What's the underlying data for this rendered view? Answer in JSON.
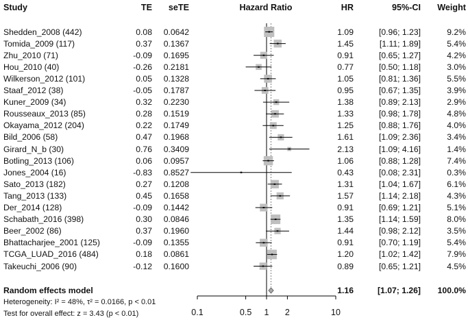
{
  "chart_data": {
    "type": "forest",
    "headers": {
      "study": "Study",
      "te": "TE",
      "sete": "seTE",
      "plot": "Hazard Ratio",
      "hr": "HR",
      "ci": "95%-CI",
      "weight": "Weight"
    },
    "studies": [
      {
        "name": "Shedden_2008 (442)",
        "te": "0.08",
        "sete": "0.0642",
        "hr": 1.09,
        "lower": 0.96,
        "upper": 1.23,
        "hr_text": "1.09",
        "ci_text": "[0.96; 1.23]",
        "weight_text": "9.2%",
        "weight": 9.2
      },
      {
        "name": "Tomida_2009 (117)",
        "te": "0.37",
        "sete": "0.1367",
        "hr": 1.45,
        "lower": 1.11,
        "upper": 1.89,
        "hr_text": "1.45",
        "ci_text": "[1.11; 1.89]",
        "weight_text": "5.4%",
        "weight": 5.4
      },
      {
        "name": "Zhu_2010 (71)",
        "te": "-0.09",
        "sete": "0.1695",
        "hr": 0.91,
        "lower": 0.65,
        "upper": 1.27,
        "hr_text": "0.91",
        "ci_text": "[0.65; 1.27]",
        "weight_text": "4.2%",
        "weight": 4.2
      },
      {
        "name": "Hou_2010 (40)",
        "te": "-0.26",
        "sete": "0.2181",
        "hr": 0.77,
        "lower": 0.5,
        "upper": 1.18,
        "hr_text": "0.77",
        "ci_text": "[0.50; 1.18]",
        "weight_text": "3.0%",
        "weight": 3.0
      },
      {
        "name": "Wilkerson_2012 (101)",
        "te": "0.05",
        "sete": "0.1328",
        "hr": 1.05,
        "lower": 0.81,
        "upper": 1.36,
        "hr_text": "1.05",
        "ci_text": "[0.81; 1.36]",
        "weight_text": "5.5%",
        "weight": 5.5
      },
      {
        "name": "Staaf_2012 (38)",
        "te": "-0.05",
        "sete": "0.1787",
        "hr": 0.95,
        "lower": 0.67,
        "upper": 1.35,
        "hr_text": "0.95",
        "ci_text": "[0.67; 1.35]",
        "weight_text": "3.9%",
        "weight": 3.9
      },
      {
        "name": "Kuner_2009 (34)",
        "te": "0.32",
        "sete": "0.2230",
        "hr": 1.38,
        "lower": 0.89,
        "upper": 2.13,
        "hr_text": "1.38",
        "ci_text": "[0.89; 2.13]",
        "weight_text": "2.9%",
        "weight": 2.9
      },
      {
        "name": "Rousseaux_2013 (85)",
        "te": "0.28",
        "sete": "0.1519",
        "hr": 1.33,
        "lower": 0.98,
        "upper": 1.78,
        "hr_text": "1.33",
        "ci_text": "[0.98; 1.78]",
        "weight_text": "4.8%",
        "weight": 4.8
      },
      {
        "name": "Okayama_2012 (204)",
        "te": "0.22",
        "sete": "0.1749",
        "hr": 1.25,
        "lower": 0.88,
        "upper": 1.76,
        "hr_text": "1.25",
        "ci_text": "[0.88; 1.76]",
        "weight_text": "4.0%",
        "weight": 4.0
      },
      {
        "name": "Bild_2006 (58)",
        "te": "0.47",
        "sete": "0.1968",
        "hr": 1.61,
        "lower": 1.09,
        "upper": 2.36,
        "hr_text": "1.61",
        "ci_text": "[1.09; 2.36]",
        "weight_text": "3.4%",
        "weight": 3.4
      },
      {
        "name": "Girard_N_b (30)",
        "te": "0.76",
        "sete": "0.3409",
        "hr": 2.13,
        "lower": 1.09,
        "upper": 4.16,
        "hr_text": "2.13",
        "ci_text": "[1.09; 4.16]",
        "weight_text": "1.4%",
        "weight": 1.4
      },
      {
        "name": "Botling_2013 (106)",
        "te": "0.06",
        "sete": "0.0957",
        "hr": 1.06,
        "lower": 0.88,
        "upper": 1.28,
        "hr_text": "1.06",
        "ci_text": "[0.88; 1.28]",
        "weight_text": "7.4%",
        "weight": 7.4
      },
      {
        "name": "Jones_2004 (16)",
        "te": "-0.83",
        "sete": "0.8527",
        "hr": 0.43,
        "lower": 0.08,
        "upper": 2.31,
        "hr_text": "0.43",
        "ci_text": "[0.08; 2.31]",
        "weight_text": "0.3%",
        "weight": 0.3
      },
      {
        "name": "Sato_2013 (182)",
        "te": "0.27",
        "sete": "0.1208",
        "hr": 1.31,
        "lower": 1.04,
        "upper": 1.67,
        "hr_text": "1.31",
        "ci_text": "[1.04; 1.67]",
        "weight_text": "6.1%",
        "weight": 6.1
      },
      {
        "name": "Tang_2013 (133)",
        "te": "0.45",
        "sete": "0.1658",
        "hr": 1.57,
        "lower": 1.14,
        "upper": 2.18,
        "hr_text": "1.57",
        "ci_text": "[1.14; 2.18]",
        "weight_text": "4.3%",
        "weight": 4.3
      },
      {
        "name": "Der_2014 (128)",
        "te": "-0.09",
        "sete": "0.1442",
        "hr": 0.91,
        "lower": 0.69,
        "upper": 1.21,
        "hr_text": "0.91",
        "ci_text": "[0.69; 1.21]",
        "weight_text": "5.1%",
        "weight": 5.1
      },
      {
        "name": "Schabath_2016 (398)",
        "te": "0.30",
        "sete": "0.0846",
        "hr": 1.35,
        "lower": 1.14,
        "upper": 1.59,
        "hr_text": "1.35",
        "ci_text": "[1.14; 1.59]",
        "weight_text": "8.0%",
        "weight": 8.0
      },
      {
        "name": "Beer_2002 (86)",
        "te": "0.37",
        "sete": "0.1960",
        "hr": 1.44,
        "lower": 0.98,
        "upper": 2.12,
        "hr_text": "1.44",
        "ci_text": "[0.98; 2.12]",
        "weight_text": "3.5%",
        "weight": 3.5
      },
      {
        "name": "Bhattacharjee_2001 (125)",
        "te": "-0.09",
        "sete": "0.1355",
        "hr": 0.91,
        "lower": 0.7,
        "upper": 1.19,
        "hr_text": "0.91",
        "ci_text": "[0.70; 1.19]",
        "weight_text": "5.4%",
        "weight": 5.4
      },
      {
        "name": "TCGA_LUAD_2016 (484)",
        "te": "0.18",
        "sete": "0.0861",
        "hr": 1.2,
        "lower": 1.02,
        "upper": 1.42,
        "hr_text": "1.20",
        "ci_text": "[1.02; 1.42]",
        "weight_text": "7.9%",
        "weight": 7.9
      },
      {
        "name": "Takeuchi_2006 (90)",
        "te": "-0.12",
        "sete": "0.1600",
        "hr": 0.89,
        "lower": 0.65,
        "upper": 1.21,
        "hr_text": "0.89",
        "ci_text": "[0.65; 1.21]",
        "weight_text": "4.5%",
        "weight": 4.5
      }
    ],
    "summary": {
      "label": "Random effects model",
      "hr": 1.16,
      "lower": 1.07,
      "upper": 1.26,
      "hr_text": "1.16",
      "ci_text": "[1.07; 1.26]",
      "weight_text": "100.0%"
    },
    "heterogeneity_text": "Heterogeneity: I² = 48%, τ² = 0.0166, p < 0.01",
    "overall_test_text": "Test for overall effect: z = 3.43 (p < 0.01)",
    "x_scale": "log",
    "x_ticks": [
      0.1,
      0.5,
      1,
      2,
      10
    ],
    "x_tick_labels": [
      "0.1",
      "0.5",
      "1",
      "2",
      "10"
    ],
    "xlim": [
      0.1,
      10
    ],
    "reference_line": 1,
    "colors": {
      "square": "#bfbfbf",
      "line": "#000000",
      "diamond": "#a9a9a9",
      "summary_line": "#808080"
    }
  }
}
